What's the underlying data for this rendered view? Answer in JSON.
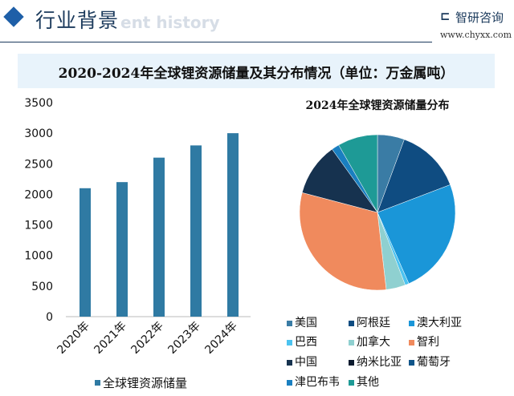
{
  "header": {
    "section_title": "行业背景",
    "ghost_text": "ent history",
    "logo_name": "智研咨询",
    "logo_url": "www.chyxx.com"
  },
  "main_title": "2020-2024年全球锂资源储量及其分布情况（单位：万金属吨）",
  "colors": {
    "accent": "#1e5fa8",
    "bar": "#2f7aa3",
    "title_bg": "#e8f3fb"
  },
  "chart_data": [
    {
      "type": "bar",
      "categories": [
        "2020年",
        "2021年",
        "2022年",
        "2023年",
        "2024年"
      ],
      "series": [
        {
          "name": "全球锂资源储量",
          "values": [
            2100,
            2200,
            2600,
            2800,
            3000
          ],
          "color": "#2f7aa3"
        }
      ],
      "ylim": [
        0,
        3500
      ],
      "yticks": [
        0,
        500,
        1000,
        1500,
        2000,
        2500,
        3000,
        3500
      ],
      "grid": false,
      "legend": "bottom"
    },
    {
      "type": "pie",
      "title": "2024年全球锂资源储量分布",
      "legend": "bottom",
      "slices": [
        {
          "label": "美国",
          "value": 5.6,
          "color": "#3a7ca5"
        },
        {
          "label": "阿根廷",
          "value": 13.6,
          "color": "#0f4c81"
        },
        {
          "label": "澳大利亚",
          "value": 24.2,
          "color": "#1a96d8"
        },
        {
          "label": "巴西",
          "value": 0.8,
          "color": "#4cc3f0"
        },
        {
          "label": "加拿大",
          "value": 4.0,
          "color": "#8fd0d0"
        },
        {
          "label": "智利",
          "value": 30.9,
          "color": "#f08a5d"
        },
        {
          "label": "中国",
          "value": 11.0,
          "color": "#16324f"
        },
        {
          "label": "纳米比亚",
          "value": 0,
          "color": "#0b1a2e"
        },
        {
          "label": "葡萄牙",
          "value": 0,
          "color": "#10558a"
        },
        {
          "label": "津巴布韦",
          "value": 1.6,
          "color": "#1a7fc0"
        },
        {
          "label": "其他",
          "value": 8.3,
          "color": "#1e9a96"
        }
      ]
    }
  ]
}
